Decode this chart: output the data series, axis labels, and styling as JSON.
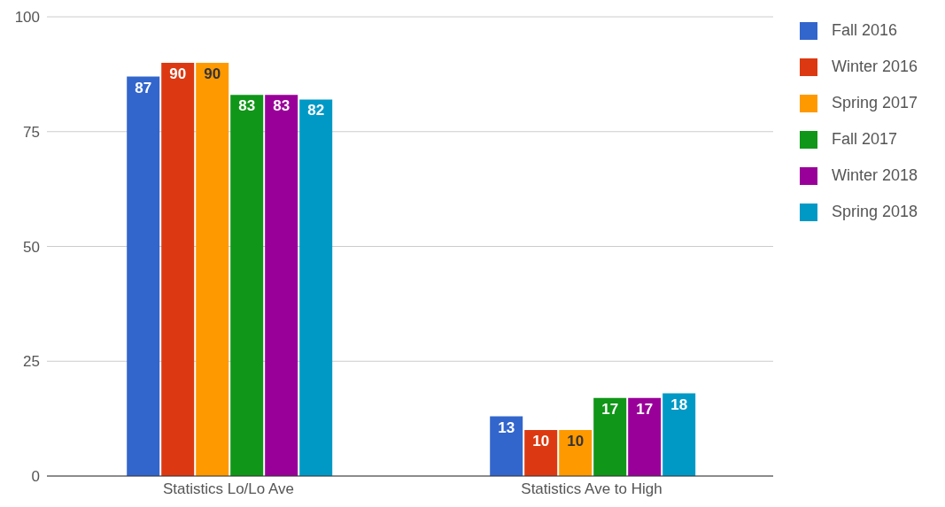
{
  "chart_data": {
    "type": "bar",
    "categories": [
      "Statistics Lo/Lo Ave",
      "Statistics Ave to High"
    ],
    "series": [
      {
        "name": "Fall 2016",
        "color": "#3366cc",
        "values": [
          87,
          13
        ]
      },
      {
        "name": "Winter 2016",
        "color": "#dc3912",
        "values": [
          90,
          10
        ]
      },
      {
        "name": "Spring 2017",
        "color": "#ff9900",
        "values": [
          90,
          10
        ]
      },
      {
        "name": "Fall 2017",
        "color": "#109618",
        "values": [
          83,
          17
        ]
      },
      {
        "name": "Winter 2018",
        "color": "#990099",
        "values": [
          83,
          17
        ]
      },
      {
        "name": "Spring 2018",
        "color": "#0099c6",
        "values": [
          82,
          18
        ]
      }
    ],
    "ylim": [
      0,
      100
    ],
    "yticks": [
      0,
      25,
      50,
      75,
      100
    ],
    "grid": "y",
    "legend": "right",
    "data_labels": true
  }
}
